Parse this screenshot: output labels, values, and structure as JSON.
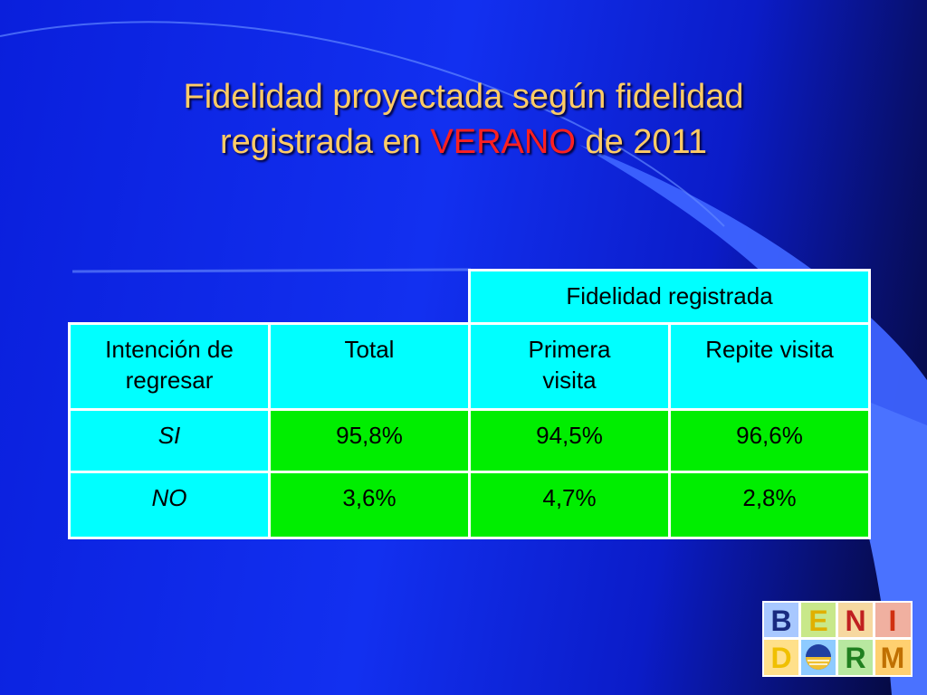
{
  "slide": {
    "title_line1": "Fidelidad proyectada según fidelidad",
    "title_line2_pre": "registrada en ",
    "title_line2_highlight": "VERANO",
    "title_line2_post": " de 2011"
  },
  "table": {
    "group_header": "Fidelidad registrada",
    "columns": {
      "intent_line1": "Intención de",
      "intent_line2": "regresar",
      "total": "Total",
      "first_line1": "Primera",
      "first_line2": "visita",
      "repeat": "Repite visita"
    },
    "rows": [
      {
        "label": "SI",
        "total": "95,8%",
        "first": "94,5%",
        "repeat": "96,6%"
      },
      {
        "label": "NO",
        "total": "3,6%",
        "first": "4,7%",
        "repeat": "2,8%"
      }
    ]
  },
  "logo": {
    "letters": [
      "B",
      "E",
      "N",
      "I",
      "D",
      "R",
      "M"
    ]
  },
  "colors": {
    "title": "#ffcc66",
    "highlight": "#ff2020",
    "header_cells": "#00ffff",
    "value_cells": "#00ee00",
    "background": "#1230f0"
  }
}
